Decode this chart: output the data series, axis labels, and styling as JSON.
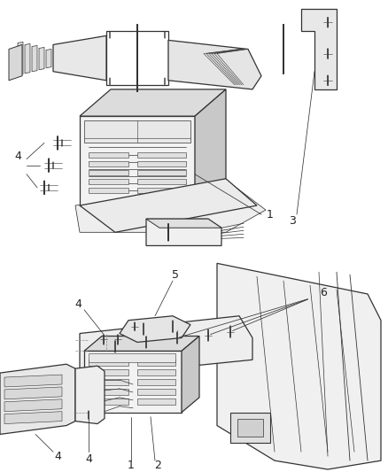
{
  "bg_color": "#ffffff",
  "line_color": "#333333",
  "label_color": "#222222",
  "fig_width": 4.38,
  "fig_height": 5.33,
  "dpi": 100
}
